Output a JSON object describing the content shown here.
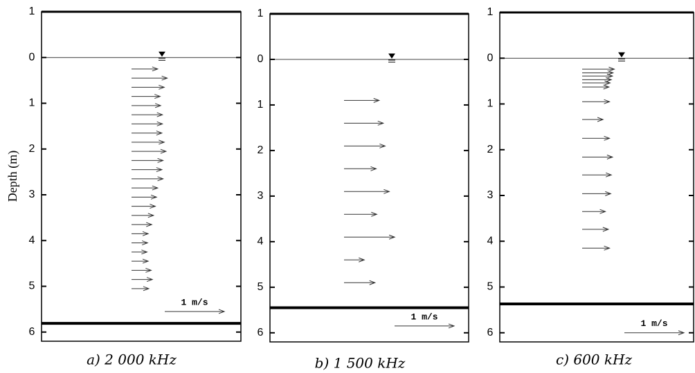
{
  "chart_data": [
    {
      "type": "quiver",
      "y_label": "Depth (m)",
      "caption": "a) 2 000 kHz",
      "ylim": [
        -1,
        6.2
      ],
      "yticks": [
        {
          "value": -1,
          "label": "1"
        },
        0,
        1,
        2,
        3,
        4,
        5,
        6
      ],
      "water_level": 0,
      "bed_level": 5.81,
      "reference": {
        "value": 1,
        "label": "1 m/s"
      },
      "y": [
        0.25,
        0.45,
        0.65,
        0.85,
        1.05,
        1.25,
        1.45,
        1.65,
        1.85,
        2.05,
        2.25,
        2.45,
        2.65,
        2.85,
        3.05,
        3.25,
        3.45,
        3.65,
        3.85,
        4.05,
        4.25,
        4.45,
        4.65,
        4.85,
        5.05
      ],
      "values": [
        0.44,
        0.6,
        0.55,
        0.48,
        0.49,
        0.52,
        0.52,
        0.51,
        0.55,
        0.58,
        0.53,
        0.51,
        0.53,
        0.44,
        0.42,
        0.4,
        0.37,
        0.34,
        0.28,
        0.27,
        0.26,
        0.28,
        0.33,
        0.35,
        0.29
      ]
    },
    {
      "type": "quiver",
      "caption": "b) 1 500 kHz",
      "ylim": [
        -1,
        6.2
      ],
      "yticks": [
        {
          "value": -1,
          "label": "1"
        },
        0,
        1,
        2,
        3,
        4,
        5,
        6
      ],
      "water_level": 0,
      "bed_level": 5.45,
      "reference": {
        "value": 1,
        "label": "1 m/s"
      },
      "y": [
        0.9,
        1.4,
        1.9,
        2.4,
        2.9,
        3.4,
        3.9,
        4.4,
        4.9
      ],
      "values": [
        0.59,
        0.66,
        0.69,
        0.54,
        0.76,
        0.55,
        0.85,
        0.34,
        0.52
      ]
    },
    {
      "type": "quiver",
      "caption": "c) 600 kHz",
      "ylim": [
        -1,
        6.2
      ],
      "yticks": [
        {
          "value": -1,
          "label": "1"
        },
        0,
        1,
        2,
        3,
        4,
        5,
        6
      ],
      "water_level": 0,
      "bed_level": 5.37,
      "reference": {
        "value": 1,
        "label": "1 m/s"
      },
      "y": [
        0.24,
        0.32,
        0.39,
        0.47,
        0.54,
        0.63,
        0.95,
        1.34,
        1.75,
        2.16,
        2.55,
        2.96,
        3.35,
        3.74,
        4.15
      ],
      "values": [
        0.54,
        0.52,
        0.51,
        0.49,
        0.47,
        0.45,
        0.46,
        0.35,
        0.46,
        0.51,
        0.49,
        0.48,
        0.39,
        0.44,
        0.46
      ]
    }
  ]
}
